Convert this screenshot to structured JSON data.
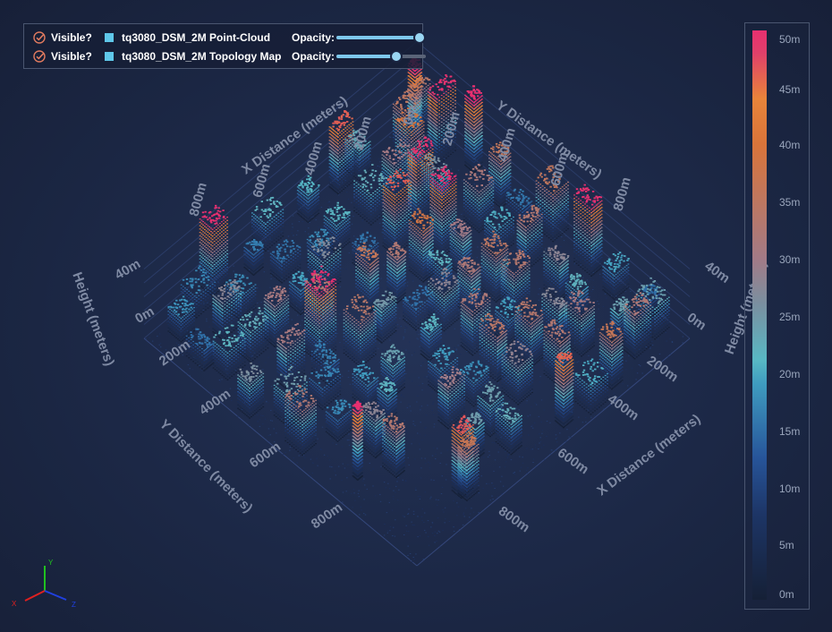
{
  "legend": {
    "layers": [
      {
        "visible_label": "Visible?",
        "name": "tq3080_DSM_2M Point-Cloud",
        "opacity_label": "Opacity:",
        "opacity": 0.93,
        "swatch": "#5fc8ea"
      },
      {
        "visible_label": "Visible?",
        "name": "tq3080_DSM_2M Topology Map",
        "opacity_label": "Opacity:",
        "opacity": 0.67,
        "swatch": "#5fc8ea"
      }
    ]
  },
  "colorbar": {
    "ticks": [
      "50m",
      "45m",
      "40m",
      "35m",
      "30m",
      "25m",
      "20m",
      "15m",
      "10m",
      "5m",
      "0m"
    ],
    "colors": [
      "#152036",
      "#27559a",
      "#48aec8",
      "#a37a86",
      "#e8843a",
      "#e83070"
    ]
  },
  "axis_triad": {
    "x": "X",
    "y": "Y",
    "z": "Z",
    "x_color": "#e02020",
    "y_color": "#20c020",
    "z_color": "#2040e0"
  },
  "chart_data": {
    "type": "scatter",
    "subtype": "3d-point-cloud",
    "axes": {
      "x": {
        "label": "X Distance (meters)",
        "ticks": [
          "0m",
          "200m",
          "400m",
          "600m",
          "800m"
        ],
        "range": [
          0,
          1000
        ]
      },
      "y": {
        "label": "Y Distance (meters)",
        "ticks": [
          "0m",
          "200m",
          "400m",
          "600m",
          "800m"
        ],
        "range": [
          0,
          1000
        ]
      },
      "z": {
        "label": "Height (meters)",
        "ticks": [
          "0m",
          "40m"
        ],
        "range": [
          0,
          50
        ]
      }
    },
    "color_scale": {
      "min": 0,
      "max": 50,
      "unit": "m"
    }
  }
}
